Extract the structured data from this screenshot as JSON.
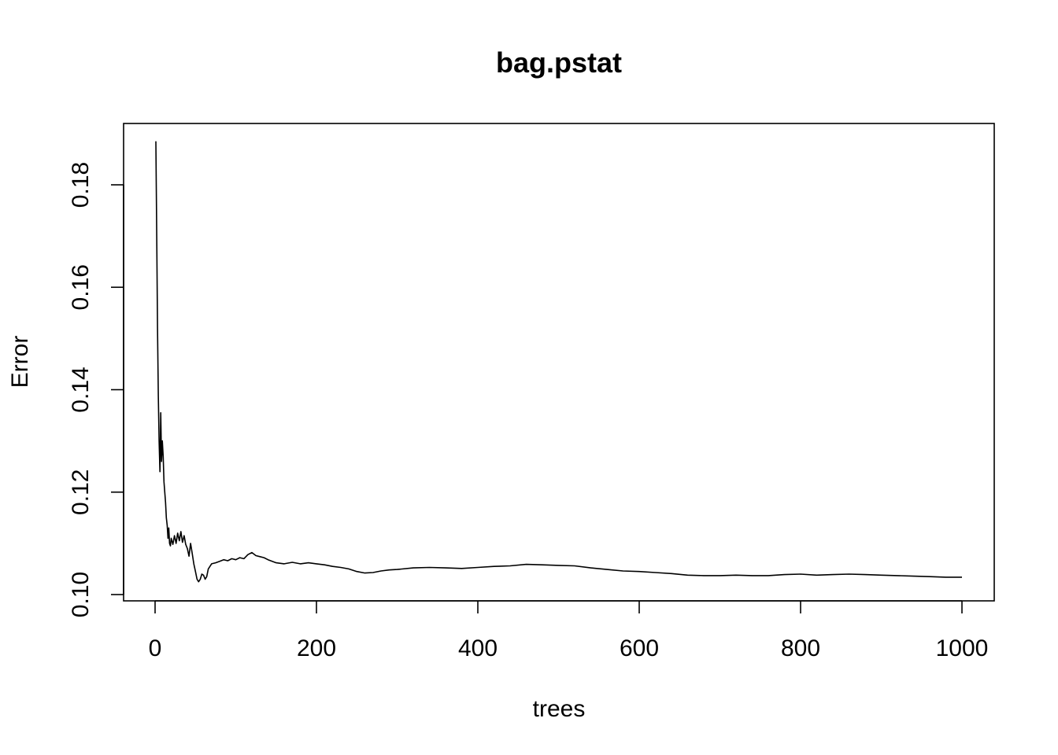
{
  "chart_data": {
    "type": "line",
    "title": "bag.pstat",
    "xlabel": "trees",
    "ylabel": "Error",
    "xlim": [
      0,
      1000
    ],
    "ylim": [
      0.1,
      0.19
    ],
    "x_ticks": [
      0,
      200,
      400,
      600,
      800,
      1000
    ],
    "x_tick_labels": [
      "0",
      "200",
      "400",
      "600",
      "800",
      "1000"
    ],
    "y_ticks": [
      0.1,
      0.12,
      0.14,
      0.16,
      0.18
    ],
    "y_tick_labels": [
      "0.10",
      "0.12",
      "0.14",
      "0.16",
      "0.18"
    ],
    "grid": false,
    "legend": "none",
    "series": [
      {
        "x": [
          1,
          2,
          3,
          4,
          5,
          6,
          7,
          8,
          9,
          10,
          11,
          12,
          13,
          14,
          15,
          16,
          17,
          18,
          19,
          20,
          22,
          24,
          26,
          28,
          30,
          32,
          34,
          36,
          38,
          40,
          42,
          44,
          46,
          48,
          50,
          52,
          54,
          56,
          58,
          60,
          62,
          64,
          66,
          68,
          70,
          75,
          80,
          85,
          90,
          95,
          100,
          105,
          110,
          115,
          120,
          125,
          130,
          135,
          140,
          150,
          160,
          170,
          180,
          190,
          200,
          210,
          220,
          230,
          240,
          250,
          260,
          270,
          280,
          290,
          300,
          320,
          340,
          360,
          380,
          400,
          420,
          440,
          460,
          480,
          500,
          520,
          540,
          560,
          580,
          600,
          620,
          640,
          660,
          680,
          700,
          720,
          740,
          760,
          780,
          800,
          820,
          840,
          860,
          880,
          900,
          920,
          940,
          960,
          980,
          1000
        ],
        "y": [
          0.1885,
          0.17,
          0.152,
          0.139,
          0.13,
          0.124,
          0.1355,
          0.126,
          0.13,
          0.127,
          0.122,
          0.12,
          0.118,
          0.115,
          0.1135,
          0.111,
          0.113,
          0.11,
          0.1095,
          0.111,
          0.1098,
          0.1115,
          0.11,
          0.112,
          0.1105,
          0.1123,
          0.1102,
          0.1115,
          0.1098,
          0.109,
          0.1075,
          0.11,
          0.108,
          0.106,
          0.1045,
          0.103,
          0.1025,
          0.103,
          0.104,
          0.1038,
          0.103,
          0.1035,
          0.105,
          0.1055,
          0.106,
          0.1062,
          0.1065,
          0.1068,
          0.1066,
          0.107,
          0.1068,
          0.1072,
          0.107,
          0.1078,
          0.1082,
          0.1076,
          0.1074,
          0.1072,
          0.1068,
          0.1062,
          0.106,
          0.1063,
          0.106,
          0.1062,
          0.106,
          0.1058,
          0.1055,
          0.1053,
          0.105,
          0.1045,
          0.1042,
          0.1043,
          0.1046,
          0.1048,
          0.1049,
          0.1052,
          0.1053,
          0.1052,
          0.1051,
          0.1053,
          0.1055,
          0.1056,
          0.1059,
          0.1058,
          0.1057,
          0.1056,
          0.1052,
          0.1049,
          0.1046,
          0.1045,
          0.1043,
          0.1041,
          0.1038,
          0.1037,
          0.1037,
          0.1038,
          0.1037,
          0.1037,
          0.1039,
          0.104,
          0.1038,
          0.1039,
          0.104,
          0.1039,
          0.1038,
          0.1037,
          0.1036,
          0.1035,
          0.1034,
          0.1034
        ]
      }
    ]
  }
}
